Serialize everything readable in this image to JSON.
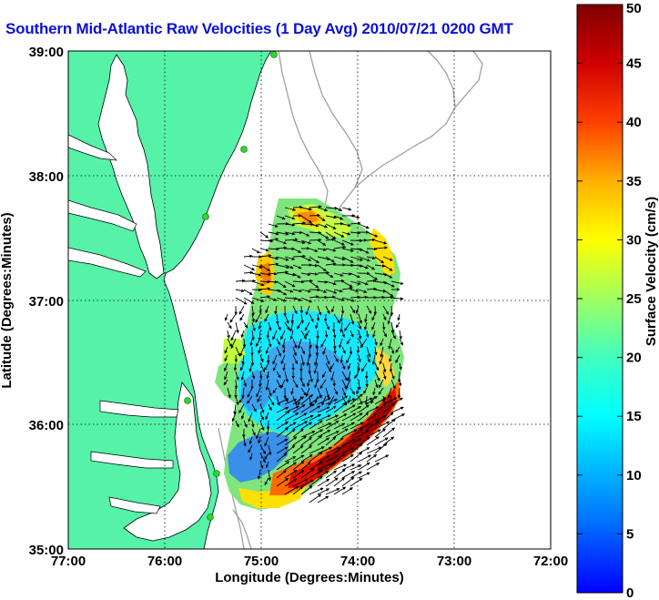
{
  "title": "Southern Mid-Atlantic Raw Velocities (1 Day Avg) 2010/07/21 0200 GMT",
  "map": {
    "xlabel": "Longitude (Degrees:Minutes)",
    "ylabel": "Latitude (Degrees:Minutes)",
    "x_ticks": [
      "77:00",
      "76:00",
      "75:00",
      "74:00",
      "73:00",
      "72:00"
    ],
    "y_ticks": [
      "39:00",
      "38:00",
      "37:00",
      "36:00",
      "35:00"
    ],
    "land_color": "#55f2a8",
    "grid": "dotted"
  },
  "colorbar": {
    "label": "Surface Velocity (cm/s)",
    "ticks": [
      "50",
      "45",
      "40",
      "35",
      "30",
      "25",
      "20",
      "15",
      "10",
      "5",
      "0"
    ],
    "min": 0,
    "max": 50,
    "colormap": "jet"
  }
}
